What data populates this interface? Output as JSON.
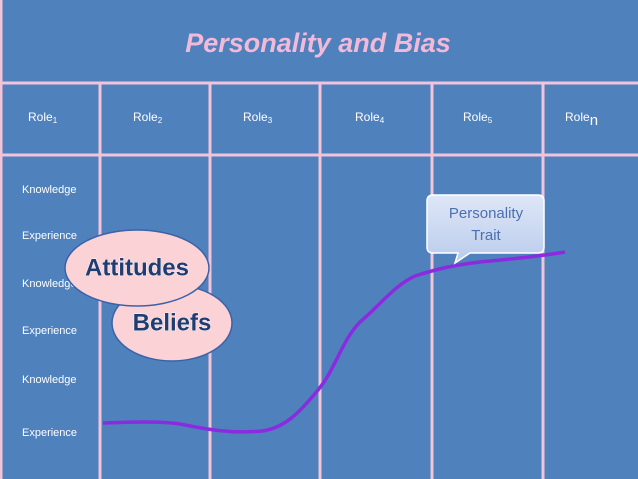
{
  "title": "Personality and Bias",
  "roles": [
    {
      "name": "Role",
      "sub": "1"
    },
    {
      "name": "Role",
      "sub": "2"
    },
    {
      "name": "Role",
      "sub": "3"
    },
    {
      "name": "Role",
      "sub": "4"
    },
    {
      "name": "Role",
      "sub": "5"
    },
    {
      "name": "Role",
      "sub": "n"
    }
  ],
  "rows": [
    "Knowledge",
    "Experience",
    "Knowledge",
    "Experience",
    "Knowledge",
    "Experience"
  ],
  "bubbles": [
    "Beliefs",
    "Attitudes"
  ],
  "callout": [
    "Personality",
    "Trait"
  ]
}
